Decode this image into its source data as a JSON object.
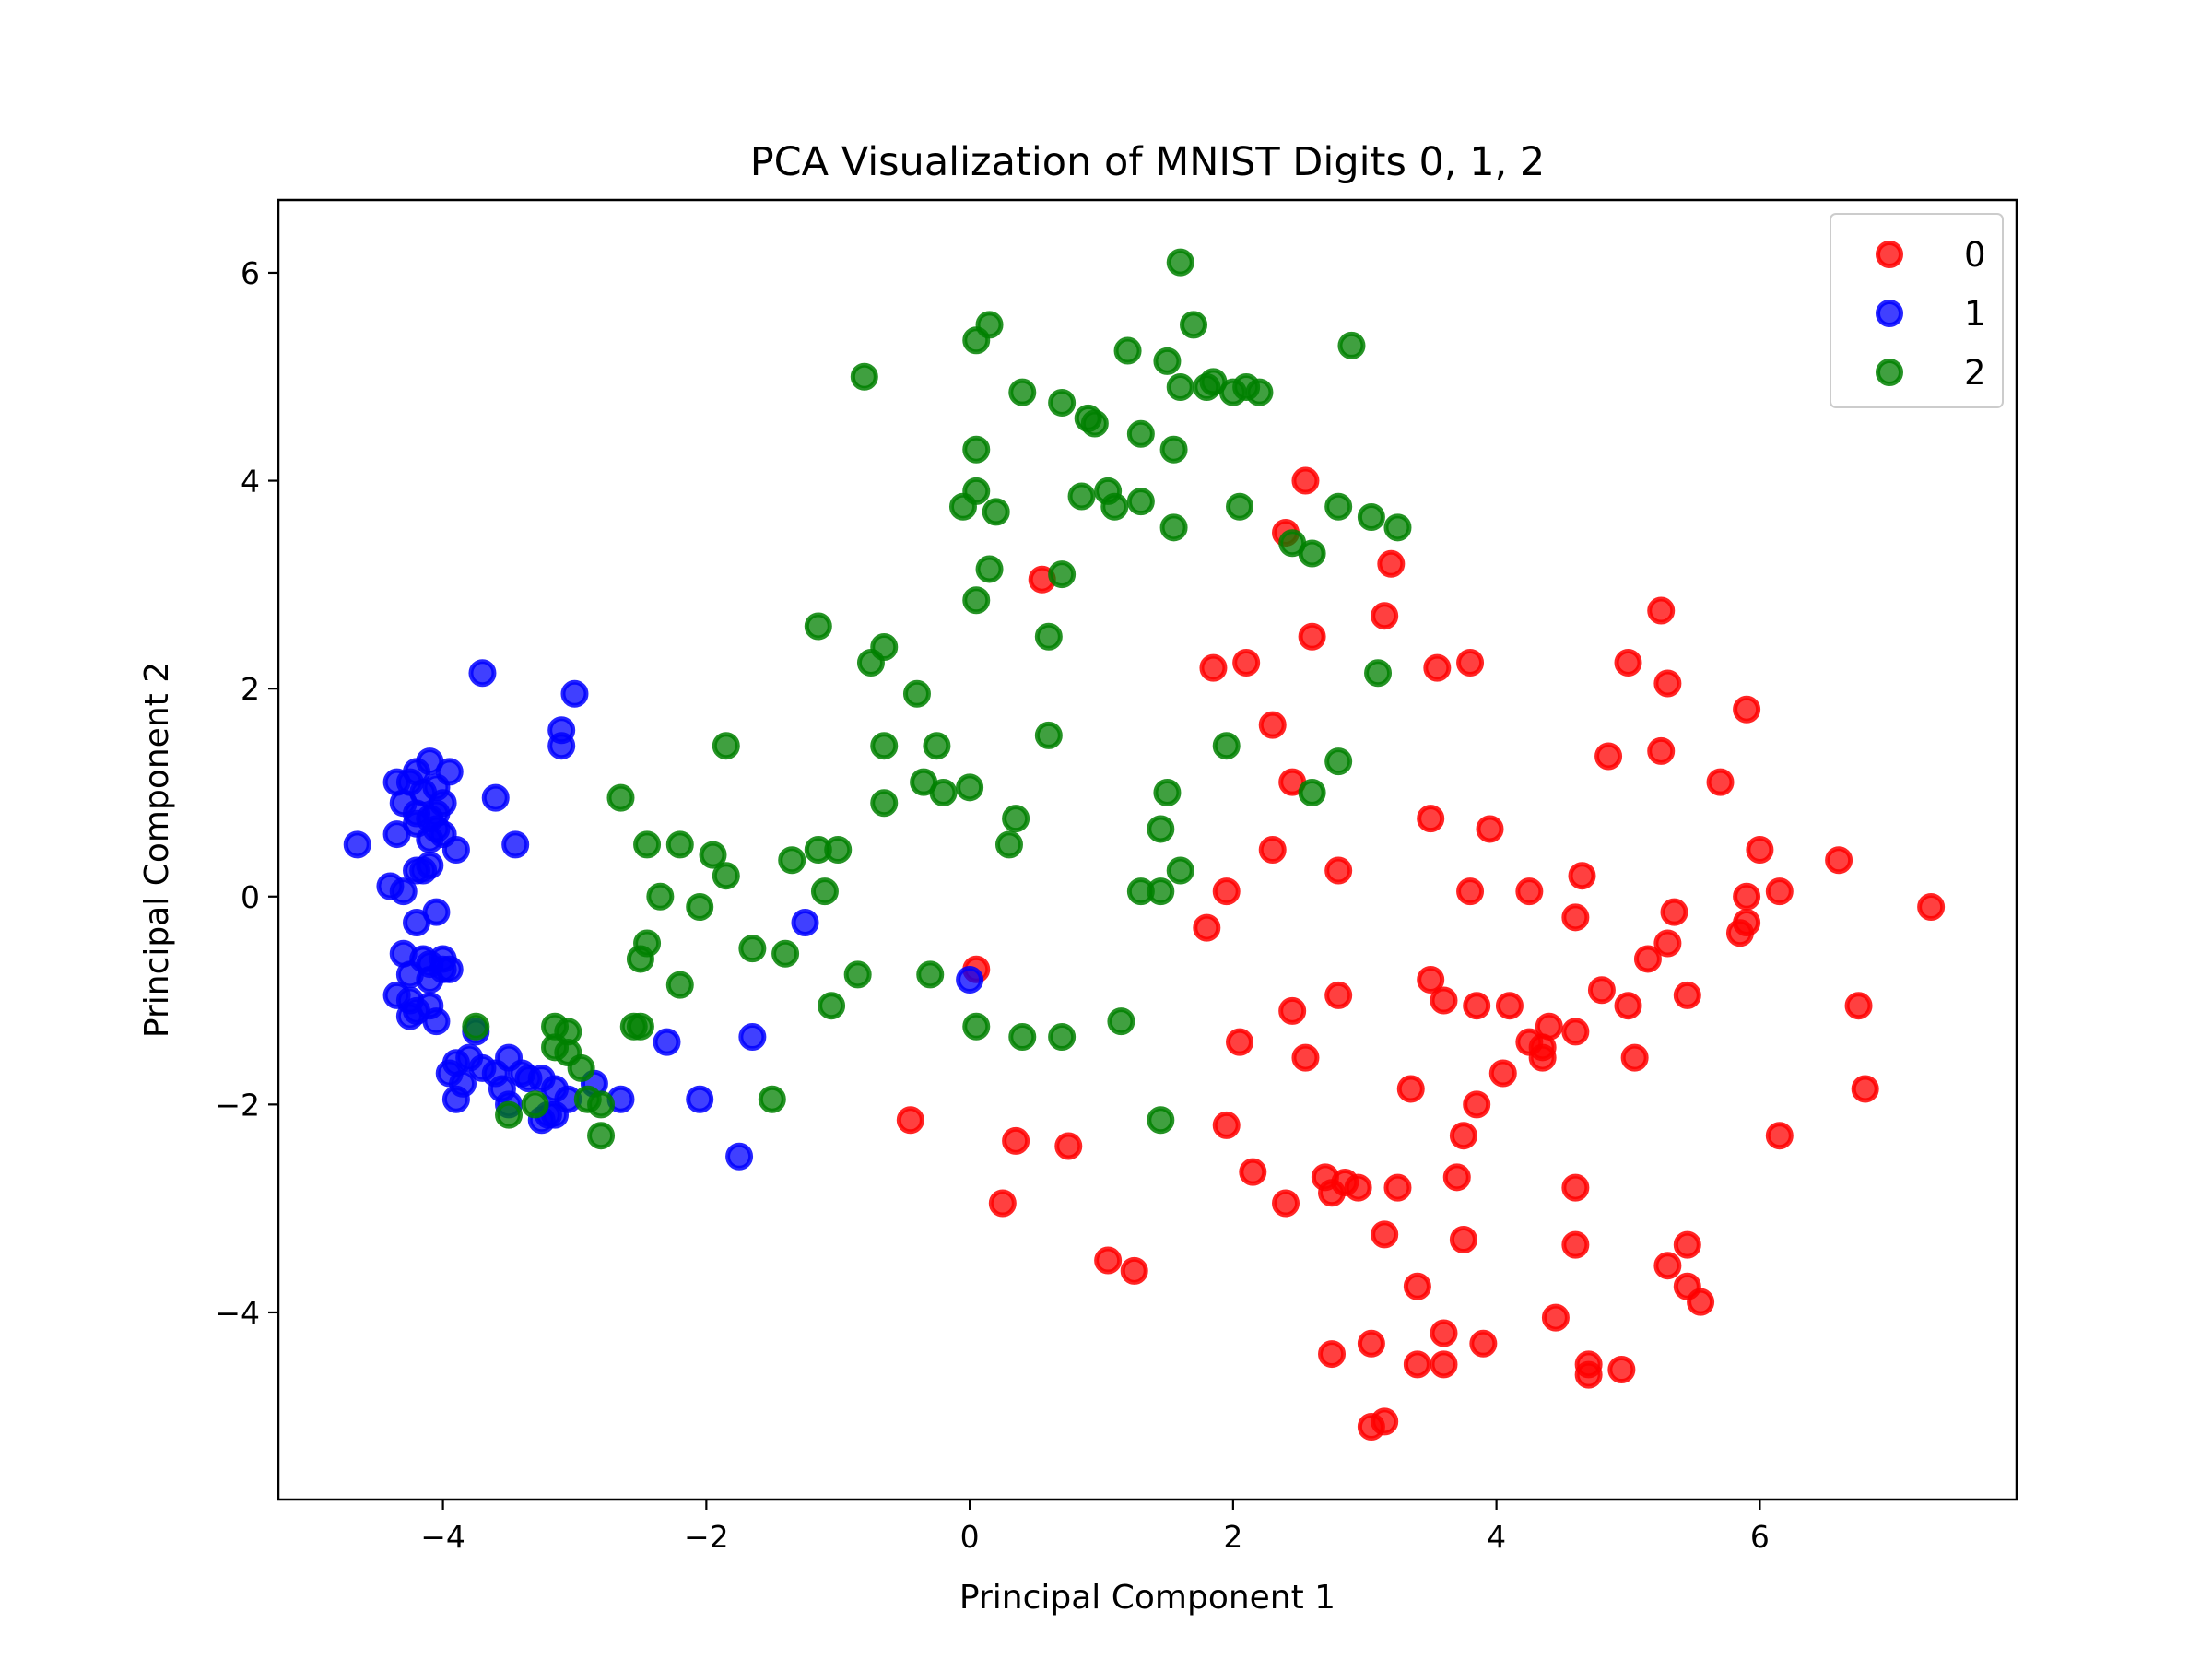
{
  "chart_data": {
    "type": "scatter",
    "title": "PCA Visualization of MNIST Digits 0, 1, 2",
    "xlabel": "Principal Component 1",
    "ylabel": "Principal Component 2",
    "xlim": [
      -5.25,
      7.95
    ],
    "ylim": [
      -5.8,
      6.7
    ],
    "xticks": [
      -4,
      -2,
      0,
      2,
      4,
      6
    ],
    "yticks": [
      -4,
      -2,
      0,
      2,
      4,
      6
    ],
    "xtick_labels": [
      "−4",
      "−2",
      "0",
      "2",
      "4",
      "6"
    ],
    "ytick_labels": [
      "−4",
      "−2",
      "0",
      "2",
      "4",
      "6"
    ],
    "grid": false,
    "legend_position": "top-right",
    "series": [
      {
        "name": "0",
        "color": "#ff0000",
        "points": [
          [
            2.55,
            4.0
          ],
          [
            2.4,
            3.5
          ],
          [
            0.55,
            3.05
          ],
          [
            3.2,
            3.2
          ],
          [
            3.15,
            2.7
          ],
          [
            5.25,
            2.75
          ],
          [
            2.6,
            2.5
          ],
          [
            1.85,
            2.2
          ],
          [
            2.1,
            2.25
          ],
          [
            3.55,
            2.2
          ],
          [
            3.8,
            2.25
          ],
          [
            5.0,
            2.25
          ],
          [
            5.3,
            2.05
          ],
          [
            5.9,
            1.8
          ],
          [
            2.3,
            1.65
          ],
          [
            4.85,
            1.35
          ],
          [
            5.25,
            1.4
          ],
          [
            2.45,
            1.1
          ],
          [
            5.7,
            1.1
          ],
          [
            3.5,
            0.75
          ],
          [
            3.95,
            0.65
          ],
          [
            2.3,
            0.45
          ],
          [
            2.8,
            0.25
          ],
          [
            4.65,
            0.2
          ],
          [
            6.0,
            0.45
          ],
          [
            6.6,
            0.35
          ],
          [
            1.95,
            0.05
          ],
          [
            3.8,
            0.05
          ],
          [
            4.25,
            0.05
          ],
          [
            5.9,
            0.0
          ],
          [
            6.15,
            0.05
          ],
          [
            5.35,
            -0.15
          ],
          [
            4.6,
            -0.2
          ],
          [
            7.3,
            -0.1
          ],
          [
            5.9,
            -0.25
          ],
          [
            1.8,
            -0.3
          ],
          [
            5.85,
            -0.35
          ],
          [
            5.3,
            -0.45
          ],
          [
            5.15,
            -0.6
          ],
          [
            0.05,
            -0.7
          ],
          [
            3.5,
            -0.8
          ],
          [
            4.8,
            -0.9
          ],
          [
            2.8,
            -0.95
          ],
          [
            5.45,
            -0.95
          ],
          [
            3.6,
            -1.0
          ],
          [
            3.85,
            -1.05
          ],
          [
            4.1,
            -1.05
          ],
          [
            5.0,
            -1.05
          ],
          [
            6.75,
            -1.05
          ],
          [
            2.45,
            -1.1
          ],
          [
            4.4,
            -1.25
          ],
          [
            4.6,
            -1.3
          ],
          [
            2.05,
            -1.4
          ],
          [
            4.25,
            -1.4
          ],
          [
            4.35,
            -1.45
          ],
          [
            4.35,
            -1.55
          ],
          [
            2.55,
            -1.55
          ],
          [
            5.05,
            -1.55
          ],
          [
            4.05,
            -1.7
          ],
          [
            3.35,
            -1.85
          ],
          [
            6.8,
            -1.85
          ],
          [
            3.85,
            -2.0
          ],
          [
            -0.45,
            -2.15
          ],
          [
            1.95,
            -2.2
          ],
          [
            0.35,
            -2.35
          ],
          [
            0.75,
            -2.4
          ],
          [
            3.75,
            -2.3
          ],
          [
            6.15,
            -2.3
          ],
          [
            2.15,
            -2.65
          ],
          [
            2.7,
            -2.7
          ],
          [
            2.75,
            -2.85
          ],
          [
            2.85,
            -2.75
          ],
          [
            2.95,
            -2.8
          ],
          [
            3.25,
            -2.8
          ],
          [
            3.7,
            -2.7
          ],
          [
            4.6,
            -2.8
          ],
          [
            0.25,
            -2.95
          ],
          [
            2.4,
            -2.95
          ],
          [
            3.15,
            -3.25
          ],
          [
            3.75,
            -3.3
          ],
          [
            4.6,
            -3.35
          ],
          [
            5.45,
            -3.35
          ],
          [
            1.05,
            -3.5
          ],
          [
            5.3,
            -3.55
          ],
          [
            1.25,
            -3.6
          ],
          [
            3.4,
            -3.75
          ],
          [
            5.45,
            -3.75
          ],
          [
            5.55,
            -3.9
          ],
          [
            4.45,
            -4.05
          ],
          [
            3.6,
            -4.2
          ],
          [
            3.05,
            -4.3
          ],
          [
            3.9,
            -4.3
          ],
          [
            2.75,
            -4.4
          ],
          [
            3.4,
            -4.5
          ],
          [
            3.6,
            -4.5
          ],
          [
            4.7,
            -4.5
          ],
          [
            4.95,
            -4.55
          ],
          [
            4.7,
            -4.6
          ],
          [
            3.05,
            -5.1
          ],
          [
            3.15,
            -5.05
          ]
        ]
      },
      {
        "name": "1",
        "color": "#0000ff",
        "points": [
          [
            -3.7,
            2.15
          ],
          [
            -3.0,
            1.95
          ],
          [
            -3.1,
            1.6
          ],
          [
            -3.1,
            1.45
          ],
          [
            -4.1,
            1.3
          ],
          [
            -4.2,
            1.2
          ],
          [
            -3.95,
            1.2
          ],
          [
            -4.35,
            1.1
          ],
          [
            -4.25,
            1.1
          ],
          [
            -4.05,
            1.05
          ],
          [
            -3.6,
            0.95
          ],
          [
            -4.15,
            1.0
          ],
          [
            -4.0,
            0.9
          ],
          [
            -4.3,
            0.9
          ],
          [
            -4.2,
            0.8
          ],
          [
            -4.1,
            0.75
          ],
          [
            -4.05,
            0.8
          ],
          [
            -4.2,
            0.7
          ],
          [
            -4.35,
            0.6
          ],
          [
            -4.05,
            0.65
          ],
          [
            -4.1,
            0.55
          ],
          [
            -4.0,
            0.6
          ],
          [
            -4.65,
            0.5
          ],
          [
            -3.45,
            0.5
          ],
          [
            -3.9,
            0.45
          ],
          [
            -4.2,
            0.25
          ],
          [
            -4.1,
            0.3
          ],
          [
            -4.15,
            0.25
          ],
          [
            -4.4,
            0.1
          ],
          [
            -4.3,
            0.05
          ],
          [
            -4.05,
            -0.15
          ],
          [
            -4.2,
            -0.25
          ],
          [
            -1.25,
            -0.25
          ],
          [
            -4.3,
            -0.55
          ],
          [
            -4.0,
            -0.6
          ],
          [
            -4.1,
            -0.65
          ],
          [
            -4.15,
            -0.6
          ],
          [
            -4.25,
            -0.75
          ],
          [
            -4.0,
            -0.7
          ],
          [
            -3.95,
            -0.7
          ],
          [
            -4.1,
            -0.8
          ],
          [
            -4.35,
            -0.95
          ],
          [
            -4.25,
            -1.0
          ],
          [
            -4.1,
            -1.05
          ],
          [
            -4.2,
            -1.1
          ],
          [
            0.0,
            -0.8
          ],
          [
            -4.25,
            -1.15
          ],
          [
            -4.05,
            -1.2
          ],
          [
            -3.75,
            -1.3
          ],
          [
            -1.65,
            -1.35
          ],
          [
            -2.3,
            -1.4
          ],
          [
            -3.8,
            -1.55
          ],
          [
            -3.9,
            -1.6
          ],
          [
            -3.5,
            -1.55
          ],
          [
            -3.95,
            -1.7
          ],
          [
            -3.7,
            -1.65
          ],
          [
            -3.6,
            -1.7
          ],
          [
            -3.4,
            -1.7
          ],
          [
            -3.35,
            -1.75
          ],
          [
            -3.85,
            -1.8
          ],
          [
            -3.25,
            -1.75
          ],
          [
            -3.55,
            -1.85
          ],
          [
            -3.15,
            -1.85
          ],
          [
            -3.9,
            -1.95
          ],
          [
            -2.85,
            -1.8
          ],
          [
            -2.05,
            -1.95
          ],
          [
            -3.5,
            -2.0
          ],
          [
            -3.05,
            -1.95
          ],
          [
            -2.65,
            -1.95
          ],
          [
            -3.15,
            -2.1
          ],
          [
            -3.25,
            -2.15
          ],
          [
            -3.2,
            -2.1
          ],
          [
            -1.75,
            -2.5
          ]
        ]
      },
      {
        "name": "2",
        "color": "#008000",
        "points": [
          [
            1.6,
            6.1
          ],
          [
            0.15,
            5.5
          ],
          [
            0.05,
            5.35
          ],
          [
            1.7,
            5.5
          ],
          [
            2.9,
            5.3
          ],
          [
            1.2,
            5.25
          ],
          [
            1.5,
            5.15
          ],
          [
            -0.8,
            5.0
          ],
          [
            1.6,
            4.9
          ],
          [
            1.8,
            4.9
          ],
          [
            1.85,
            4.95
          ],
          [
            2.0,
            4.85
          ],
          [
            2.1,
            4.9
          ],
          [
            2.2,
            4.85
          ],
          [
            0.4,
            4.85
          ],
          [
            0.7,
            4.75
          ],
          [
            0.9,
            4.6
          ],
          [
            0.95,
            4.55
          ],
          [
            1.3,
            4.45
          ],
          [
            1.55,
            4.3
          ],
          [
            0.05,
            4.3
          ],
          [
            0.05,
            3.9
          ],
          [
            -0.05,
            3.75
          ],
          [
            0.2,
            3.7
          ],
          [
            0.85,
            3.85
          ],
          [
            1.05,
            3.9
          ],
          [
            1.1,
            3.75
          ],
          [
            1.3,
            3.8
          ],
          [
            2.05,
            3.75
          ],
          [
            2.8,
            3.75
          ],
          [
            3.05,
            3.65
          ],
          [
            3.25,
            3.55
          ],
          [
            1.55,
            3.55
          ],
          [
            2.45,
            3.4
          ],
          [
            2.6,
            3.3
          ],
          [
            0.15,
            3.15
          ],
          [
            0.7,
            3.1
          ],
          [
            0.05,
            2.85
          ],
          [
            -1.15,
            2.6
          ],
          [
            0.6,
            2.5
          ],
          [
            -0.65,
            2.4
          ],
          [
            -0.75,
            2.25
          ],
          [
            3.1,
            2.15
          ],
          [
            -0.4,
            1.95
          ],
          [
            -1.85,
            1.45
          ],
          [
            -0.65,
            1.45
          ],
          [
            -0.25,
            1.45
          ],
          [
            0.6,
            1.55
          ],
          [
            1.95,
            1.45
          ],
          [
            2.8,
            1.3
          ],
          [
            -0.35,
            1.1
          ],
          [
            -0.2,
            1.0
          ],
          [
            0.0,
            1.05
          ],
          [
            1.5,
            1.0
          ],
          [
            2.6,
            1.0
          ],
          [
            -2.65,
            0.95
          ],
          [
            -0.65,
            0.9
          ],
          [
            0.35,
            0.75
          ],
          [
            1.45,
            0.65
          ],
          [
            -2.45,
            0.5
          ],
          [
            -2.2,
            0.5
          ],
          [
            -1.15,
            0.45
          ],
          [
            -1.0,
            0.45
          ],
          [
            0.3,
            0.5
          ],
          [
            -1.95,
            0.4
          ],
          [
            -1.35,
            0.35
          ],
          [
            -1.85,
            0.2
          ],
          [
            1.6,
            0.25
          ],
          [
            1.3,
            0.05
          ],
          [
            1.45,
            0.05
          ],
          [
            -2.35,
            0.0
          ],
          [
            -1.1,
            0.05
          ],
          [
            -2.05,
            -0.1
          ],
          [
            -2.45,
            -0.45
          ],
          [
            -1.65,
            -0.5
          ],
          [
            -1.4,
            -0.55
          ],
          [
            -2.5,
            -0.6
          ],
          [
            -0.85,
            -0.75
          ],
          [
            -0.3,
            -0.75
          ],
          [
            -2.2,
            -0.85
          ],
          [
            -1.05,
            -1.05
          ],
          [
            1.15,
            -1.2
          ],
          [
            0.05,
            -1.25
          ],
          [
            -2.55,
            -1.25
          ],
          [
            -2.5,
            -1.25
          ],
          [
            -3.15,
            -1.25
          ],
          [
            -3.75,
            -1.25
          ],
          [
            -3.05,
            -1.3
          ],
          [
            0.4,
            -1.35
          ],
          [
            0.7,
            -1.35
          ],
          [
            -3.15,
            -1.45
          ],
          [
            -3.05,
            -1.5
          ],
          [
            -2.95,
            -1.65
          ],
          [
            -2.9,
            -1.95
          ],
          [
            -2.8,
            -2.0
          ],
          [
            -1.5,
            -1.95
          ],
          [
            -3.3,
            -2.0
          ],
          [
            -3.5,
            -2.1
          ],
          [
            1.45,
            -2.15
          ],
          [
            -2.8,
            -2.3
          ]
        ]
      }
    ]
  }
}
